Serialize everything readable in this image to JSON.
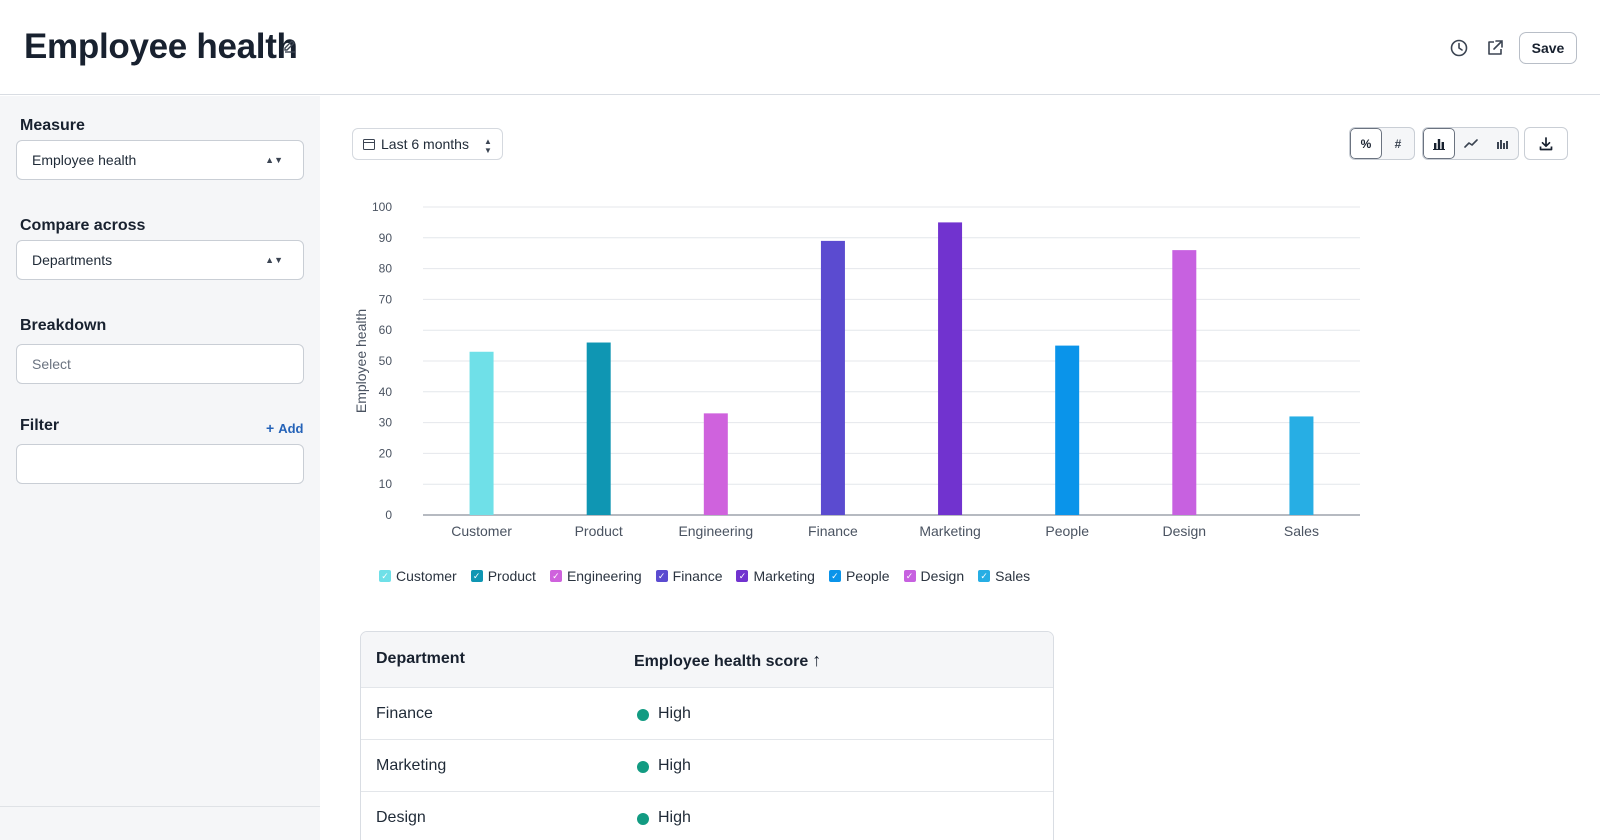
{
  "header": {
    "title": "Employee health",
    "save_label": "Save"
  },
  "sidebar": {
    "measure": {
      "label": "Measure",
      "value": "Employee health"
    },
    "compare": {
      "label": "Compare across",
      "value": "Departments"
    },
    "breakdown": {
      "label": "Breakdown",
      "placeholder": "Select"
    },
    "filter": {
      "label": "Filter",
      "add_label": "Add",
      "value": ""
    }
  },
  "toolbar": {
    "date_range": "Last 6 months",
    "format_toggle": [
      {
        "label": "%",
        "active": true
      },
      {
        "label": "#",
        "active": false
      }
    ],
    "chart_types": [
      {
        "name": "bar-chart-icon",
        "active": true
      },
      {
        "name": "line-chart-icon",
        "active": false
      },
      {
        "name": "grouped-bar-icon",
        "active": false
      }
    ]
  },
  "chart_data": {
    "type": "bar",
    "ylabel": "Employee health",
    "xlabel": "",
    "ylim": [
      0,
      100
    ],
    "yticks": [
      0,
      10,
      20,
      30,
      40,
      50,
      60,
      70,
      80,
      90,
      100
    ],
    "categories": [
      "Customer",
      "Product",
      "Engineering",
      "Finance",
      "Marketing",
      "People",
      "Design",
      "Sales"
    ],
    "values": [
      53,
      56,
      33,
      89,
      95,
      55,
      86,
      32
    ],
    "colors": [
      "#6fe0e8",
      "#0f96b3",
      "#cf62dd",
      "#5b4bd0",
      "#7133cf",
      "#0a94ea",
      "#c761e0",
      "#27aee4"
    ],
    "grid": true,
    "legend": "bottom-left"
  },
  "table": {
    "columns": [
      "Department",
      "Employee health score"
    ],
    "sort_arrow": "↑",
    "rows": [
      {
        "department": "Finance",
        "status": "High",
        "color": "#129b82"
      },
      {
        "department": "Marketing",
        "status": "High",
        "color": "#129b82"
      },
      {
        "department": "Design",
        "status": "High",
        "color": "#129b82"
      }
    ]
  }
}
